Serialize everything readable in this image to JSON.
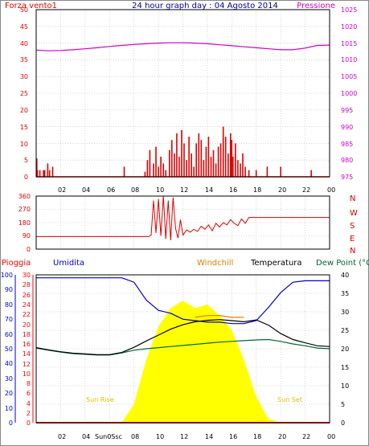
{
  "title": "24 hour graph day : 04 Agosto 2014",
  "colors": {
    "wind": "#e00000",
    "pressure": "#cc00cc",
    "direction": "#e00000",
    "rain": "#ff0000",
    "humidity": "#0000cc",
    "windchill": "#e08000",
    "temperature": "#000000",
    "dewpoint": "#006633",
    "solar": "#ffff00",
    "grid": "#bdbdbd",
    "frame": "#000000"
  },
  "chart_data": [
    {
      "id": "wind_pressure",
      "type": "bar",
      "title": "24 hour graph day : 04 Agosto 2014",
      "left_label": "Forza vento1",
      "right_label": "Pressione",
      "ylim": [
        0,
        50
      ],
      "y2lim": [
        975,
        1025
      ],
      "y_ticks": [
        "0",
        "5",
        "10",
        "15",
        "20",
        "25",
        "30",
        "35",
        "40",
        "45",
        "50"
      ],
      "y2_ticks": [
        "975",
        "980",
        "985",
        "990",
        "995",
        "1000",
        "1005",
        "1010",
        "1015",
        "1020",
        "1025"
      ],
      "x_ticks": [
        "02",
        "04",
        "06",
        "08",
        "10",
        "12",
        "14",
        "16",
        "18",
        "20",
        "22",
        "00"
      ],
      "x": [
        0,
        1,
        2,
        3,
        4,
        5,
        6,
        7,
        8,
        9,
        10,
        11,
        12,
        13,
        14,
        15,
        16,
        17,
        18,
        19,
        20,
        21,
        22,
        23,
        24
      ],
      "pressure": [
        1012.9,
        1012.7,
        1012.8,
        1013.0,
        1013.3,
        1013.6,
        1014.0,
        1014.3,
        1014.6,
        1014.8,
        1015.0,
        1015.1,
        1015.1,
        1015.0,
        1014.8,
        1014.5,
        1014.2,
        1013.9,
        1013.6,
        1013.3,
        1013.0,
        1013.0,
        1013.5,
        1014.3,
        1014.4
      ],
      "gust_hours": [
        0.05,
        0.1,
        0.3,
        0.6,
        0.7,
        0.95,
        1.1,
        1.35,
        7.2,
        8.9,
        9.1,
        9.3,
        9.6,
        9.8,
        10.0,
        10.2,
        10.4,
        10.6,
        10.9,
        11.1,
        11.3,
        11.5,
        11.7,
        11.9,
        12.1,
        12.3,
        12.5,
        12.7,
        12.9,
        13.1,
        13.3,
        13.5,
        13.7,
        13.9,
        14.1,
        14.3,
        14.5,
        14.7,
        14.9,
        15.1,
        15.3,
        15.5,
        15.7,
        15.9,
        16.0,
        16.1,
        16.3,
        16.5,
        16.7,
        16.9,
        17.1,
        17.4,
        18.0,
        18.9,
        20.0,
        22.5
      ],
      "gust_values": [
        5.5,
        2,
        2,
        2,
        2,
        4,
        2,
        3,
        3,
        1.5,
        5,
        8,
        4,
        9,
        3,
        6,
        4,
        2,
        8,
        11,
        7,
        13,
        6,
        14,
        10,
        5,
        12,
        7,
        3,
        10,
        13,
        11,
        5,
        9,
        12,
        6,
        8,
        4,
        9,
        10,
        15,
        12,
        7,
        13,
        11,
        6,
        10,
        5,
        4,
        7,
        3,
        2,
        2,
        3,
        3,
        2
      ]
    },
    {
      "id": "wind_direction",
      "type": "line",
      "ylim": [
        0,
        360
      ],
      "y_ticks": [
        "0",
        "90",
        "180",
        "270",
        "360"
      ],
      "right_labels": [
        "N",
        "W",
        "S",
        "E",
        "N"
      ],
      "x": [
        0,
        6,
        9.2,
        9.4,
        9.6,
        9.8,
        10.0,
        10.2,
        10.4,
        10.6,
        10.8,
        11.0,
        11.2,
        11.4,
        11.6,
        11.8,
        12.0,
        12.3,
        12.6,
        12.9,
        13.2,
        13.5,
        13.8,
        14.1,
        14.4,
        14.7,
        15.0,
        15.3,
        15.6,
        15.9,
        16.2,
        16.5,
        16.8,
        17.1,
        17.4,
        18.0,
        24
      ],
      "values": [
        85,
        85,
        85,
        95,
        330,
        110,
        340,
        90,
        360,
        70,
        330,
        60,
        350,
        140,
        75,
        200,
        95,
        130,
        115,
        135,
        120,
        155,
        135,
        165,
        125,
        175,
        150,
        180,
        165,
        200,
        175,
        160,
        205,
        175,
        215,
        215,
        215
      ]
    },
    {
      "id": "temp_humidity",
      "type": "line",
      "headers": [
        "Pioggia",
        "Umidita",
        "Windchill",
        "Temperatura",
        "Dew Point (°C"
      ],
      "humidity_ticks": [
        "0",
        "10",
        "20",
        "30",
        "40",
        "50",
        "60",
        "70",
        "80",
        "90",
        "100"
      ],
      "rain_ticks": [
        "0",
        "2",
        "4",
        "6",
        "8",
        "10",
        "12",
        "14",
        "16",
        "18",
        "20",
        "22",
        "24",
        "26",
        "28",
        "30"
      ],
      "temp_ticks": [
        "0",
        "5",
        "10",
        "15",
        "20",
        "25",
        "30",
        "35",
        "40"
      ],
      "x_ticks": [
        "02",
        "04",
        "Sun0Ssc",
        "08",
        "10",
        "12",
        "14",
        "16",
        "18",
        "20",
        "22",
        "00"
      ],
      "annotations": [
        "Sun Rise",
        "Sun Set"
      ],
      "temp_ylim": [
        0,
        40
      ],
      "humidity_ylim": [
        0,
        100
      ],
      "x": [
        0,
        1,
        2,
        3,
        4,
        5,
        6,
        7,
        8,
        9,
        10,
        11,
        12,
        13,
        14,
        15,
        16,
        17,
        18,
        19,
        20,
        21,
        22,
        23,
        24
      ],
      "humidity": [
        98,
        98,
        98,
        98,
        98,
        98,
        98,
        98,
        95,
        83,
        76,
        74,
        70,
        69,
        68,
        68,
        67,
        67,
        69,
        78,
        88,
        95,
        96,
        96,
        96
      ],
      "windchill": [
        null,
        null,
        null,
        null,
        null,
        null,
        null,
        null,
        null,
        null,
        null,
        null,
        null,
        28.5,
        29,
        29,
        28.5,
        28.5,
        null,
        null,
        null,
        null,
        null,
        null,
        null
      ],
      "temperature": [
        20.3,
        19.7,
        19.2,
        18.8,
        18.6,
        18.4,
        18.4,
        19.0,
        20.4,
        22.1,
        23.7,
        25.3,
        26.5,
        27.3,
        27.7,
        27.9,
        27.6,
        27.3,
        27.8,
        26.4,
        24.1,
        22.5,
        21.6,
        20.8,
        20.6
      ],
      "dewpoint": [
        20.2,
        19.6,
        19.1,
        18.7,
        18.5,
        18.3,
        18.3,
        18.9,
        19.6,
        20.0,
        20.3,
        20.6,
        20.9,
        21.2,
        21.5,
        21.8,
        22.0,
        22.2,
        22.4,
        22.5,
        22.0,
        21.3,
        20.8,
        20.2,
        20.0
      ],
      "solar": [
        0,
        0,
        0,
        0,
        0,
        0,
        0,
        0,
        5,
        17,
        26,
        31,
        33,
        31,
        32,
        29,
        25,
        17,
        7,
        1,
        0,
        0,
        0,
        0,
        0
      ]
    }
  ]
}
